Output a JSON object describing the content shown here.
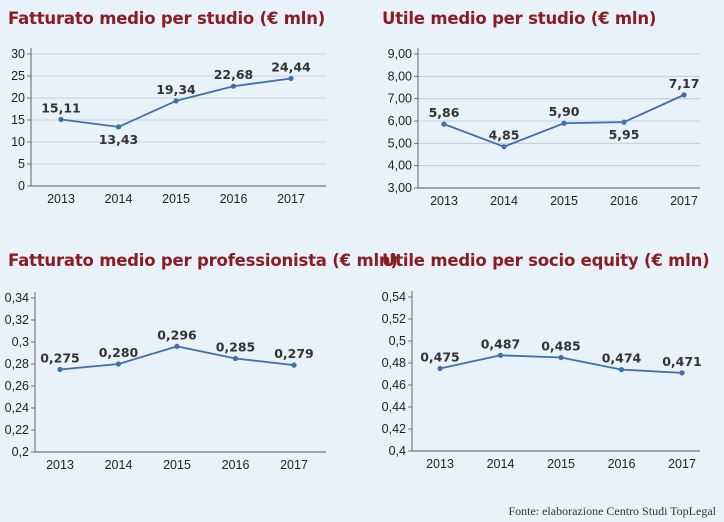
{
  "chart_data": [
    {
      "type": "line",
      "title": "Fatturato medio per studio (€ mln)",
      "categories": [
        "2013",
        "2014",
        "2015",
        "2016",
        "2017"
      ],
      "values": [
        15.11,
        13.43,
        19.34,
        22.68,
        24.44
      ],
      "data_labels": [
        "15,11",
        "13,43",
        "19,34",
        "22,68",
        "24,44"
      ],
      "y_ticks": [
        "0",
        "5",
        "10",
        "15",
        "20",
        "25",
        "30"
      ],
      "ylim": [
        0,
        30
      ],
      "grid": true,
      "line_color": "#3f6fae"
    },
    {
      "type": "line",
      "title": "Utile medio per studio (€ mln)",
      "categories": [
        "2013",
        "2014",
        "2015",
        "2016",
        "2017"
      ],
      "values": [
        5.86,
        4.85,
        5.9,
        5.95,
        7.17
      ],
      "data_labels": [
        "5,86",
        "4,85",
        "5,90",
        "5,95",
        "7,17"
      ],
      "y_ticks": [
        "3,00",
        "4,00",
        "5,00",
        "6,00",
        "7,00",
        "8,00",
        "9,00"
      ],
      "ylim": [
        3,
        9
      ],
      "grid": true,
      "line_color": "#3f6fae"
    },
    {
      "type": "line",
      "title": "Fatturato medio per professionista (€ mln)",
      "categories": [
        "2013",
        "2014",
        "2015",
        "2016",
        "2017"
      ],
      "values": [
        0.275,
        0.28,
        0.296,
        0.285,
        0.279
      ],
      "data_labels": [
        "0,275",
        "0,280",
        "0,296",
        "0,285",
        "0,279"
      ],
      "y_ticks": [
        "0,2",
        "0,22",
        "0,24",
        "0,26",
        "0,28",
        "0,3",
        "0,32",
        "0,34"
      ],
      "ylim": [
        0.2,
        0.34
      ],
      "grid": false,
      "line_color": "#3f6fae"
    },
    {
      "type": "line",
      "title": "Utile medio per socio equity (€ mln)",
      "categories": [
        "2013",
        "2014",
        "2015",
        "2016",
        "2017"
      ],
      "values": [
        0.475,
        0.487,
        0.485,
        0.474,
        0.471
      ],
      "data_labels": [
        "0,475",
        "0,487",
        "0,485",
        "0,474",
        "0,471"
      ],
      "y_ticks": [
        "0,4",
        "0,42",
        "0,44",
        "0,46",
        "0,48",
        "0,5",
        "0,52",
        "0,54"
      ],
      "ylim": [
        0.4,
        0.54
      ],
      "grid": false,
      "line_color": "#3f6fae"
    }
  ],
  "source": "Fonte: elaborazione Centro Studi TopLegal"
}
